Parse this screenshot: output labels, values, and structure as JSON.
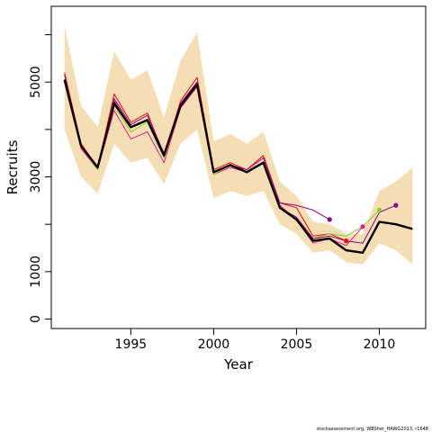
{
  "chart_data": {
    "type": "line",
    "xlabel": "Year",
    "ylabel": "Recruits",
    "xlim": [
      1990.2,
      2012.8
    ],
    "ylim": [
      -200,
      6600
    ],
    "x_ticks": [
      1995,
      2000,
      2005,
      2010
    ],
    "y_ticks": [
      0,
      1000,
      2000,
      3000,
      4000,
      5000,
      6000
    ],
    "y_tick_labels": [
      {
        "value": 0,
        "label": "0"
      },
      {
        "value": 1000,
        "label": "1000"
      },
      {
        "value": 3000,
        "label": "3000"
      },
      {
        "value": 5000,
        "label": "5000"
      }
    ],
    "confidence_band": {
      "color": "#f5deb3",
      "x": [
        1991,
        1992,
        1993,
        1994,
        1995,
        1996,
        1997,
        1998,
        1999,
        2000,
        2001,
        2002,
        2003,
        2004,
        2005,
        2006,
        2007,
        2008,
        2009,
        2010,
        2011,
        2012
      ],
      "upper": [
        6200,
        4500,
        4050,
        5650,
        5050,
        5250,
        4250,
        5450,
        6050,
        3750,
        3900,
        3700,
        3950,
        2900,
        2600,
        2050,
        2000,
        1800,
        1800,
        2700,
        2900,
        3200
      ],
      "lower": [
        4000,
        3000,
        2650,
        3700,
        3300,
        3400,
        2850,
        3700,
        4000,
        2550,
        2700,
        2600,
        2700,
        2000,
        1800,
        1400,
        1450,
        1200,
        1150,
        1600,
        1450,
        1150
      ]
    },
    "series": [
      {
        "color": "#000000",
        "width": 2.4,
        "x": [
          1991,
          1992,
          1993,
          1994,
          1995,
          1996,
          1997,
          1998,
          1999,
          2000,
          2001,
          2002,
          2003,
          2004,
          2005,
          2006,
          2007,
          2008,
          2009,
          2010,
          2011,
          2012
        ],
        "values": [
          5050,
          3650,
          3200,
          4550,
          4050,
          4200,
          3450,
          4500,
          4950,
          3100,
          3250,
          3100,
          3300,
          2350,
          2100,
          1650,
          1700,
          1450,
          1400,
          2050,
          2000,
          1900
        ]
      },
      {
        "color": "#e0218a",
        "width": 1,
        "x": [
          1991,
          1992,
          1993,
          1994,
          1995,
          1996,
          1997,
          1998,
          1999,
          2000,
          2001,
          2002,
          2003,
          2004,
          2005,
          2006,
          2007,
          2008,
          2009
        ],
        "values": [
          5000,
          3600,
          3150,
          4400,
          3800,
          3950,
          3300,
          4450,
          4900,
          3050,
          3200,
          3100,
          3300,
          2400,
          2100,
          1600,
          1700,
          1550,
          1950
        ],
        "endpoint": {
          "x": 2009,
          "y": 1950
        }
      },
      {
        "color": "#ff0000",
        "width": 1,
        "x": [
          1991,
          1992,
          1993,
          1994,
          1995,
          1996,
          1997,
          1998,
          1999,
          2000,
          2001,
          2002,
          2003,
          2004,
          2005,
          2006,
          2007,
          2008
        ],
        "values": [
          5200,
          3700,
          3200,
          4750,
          4150,
          4350,
          3450,
          4600,
          5100,
          3150,
          3300,
          3150,
          3450,
          2450,
          2350,
          1750,
          1800,
          1650
        ],
        "endpoint": {
          "x": 2008,
          "y": 1650
        }
      },
      {
        "color": "#8b008b",
        "width": 1,
        "x": [
          1991,
          1992,
          1993,
          1994,
          1995,
          1996,
          1997,
          1998,
          1999,
          2000,
          2001,
          2002,
          2003,
          2004,
          2005,
          2006,
          2007
        ],
        "values": [
          5150,
          3650,
          3200,
          4650,
          4100,
          4300,
          3500,
          4550,
          5000,
          3100,
          3250,
          3150,
          3400,
          2450,
          2400,
          2300,
          2100
        ],
        "endpoint": {
          "x": 2007,
          "y": 2100
        }
      },
      {
        "color": "#7cd320",
        "width": 1,
        "x": [
          1991,
          1992,
          1993,
          1994,
          1995,
          1996,
          1997,
          1998,
          1999,
          2000,
          2001,
          2002,
          2003,
          2004,
          2005,
          2006,
          2007,
          2008,
          2009,
          2010
        ],
        "values": [
          5050,
          3650,
          3150,
          4500,
          3950,
          4150,
          3400,
          4500,
          4950,
          3050,
          3250,
          3100,
          3300,
          2350,
          2150,
          1700,
          1800,
          1750,
          1950,
          2300
        ],
        "endpoint": {
          "x": 2010,
          "y": 2300
        }
      },
      {
        "color": "#8b008b",
        "width": 1,
        "x": [
          1991,
          1992,
          1993,
          1994,
          1995,
          1996,
          1997,
          1998,
          1999,
          2000,
          2001,
          2002,
          2003,
          2004,
          2005,
          2006,
          2007,
          2008,
          2009,
          2010,
          2011
        ],
        "values": [
          5050,
          3650,
          3200,
          4600,
          4050,
          4200,
          3450,
          4550,
          4950,
          3100,
          3250,
          3100,
          3300,
          2350,
          2150,
          1700,
          1750,
          1650,
          1600,
          2250,
          2400
        ],
        "endpoint": {
          "x": 2011,
          "y": 2400
        }
      }
    ],
    "grid": false,
    "legend": "none"
  },
  "credit": "stockassessment.org, WBSher_HAWG2013, r1648"
}
